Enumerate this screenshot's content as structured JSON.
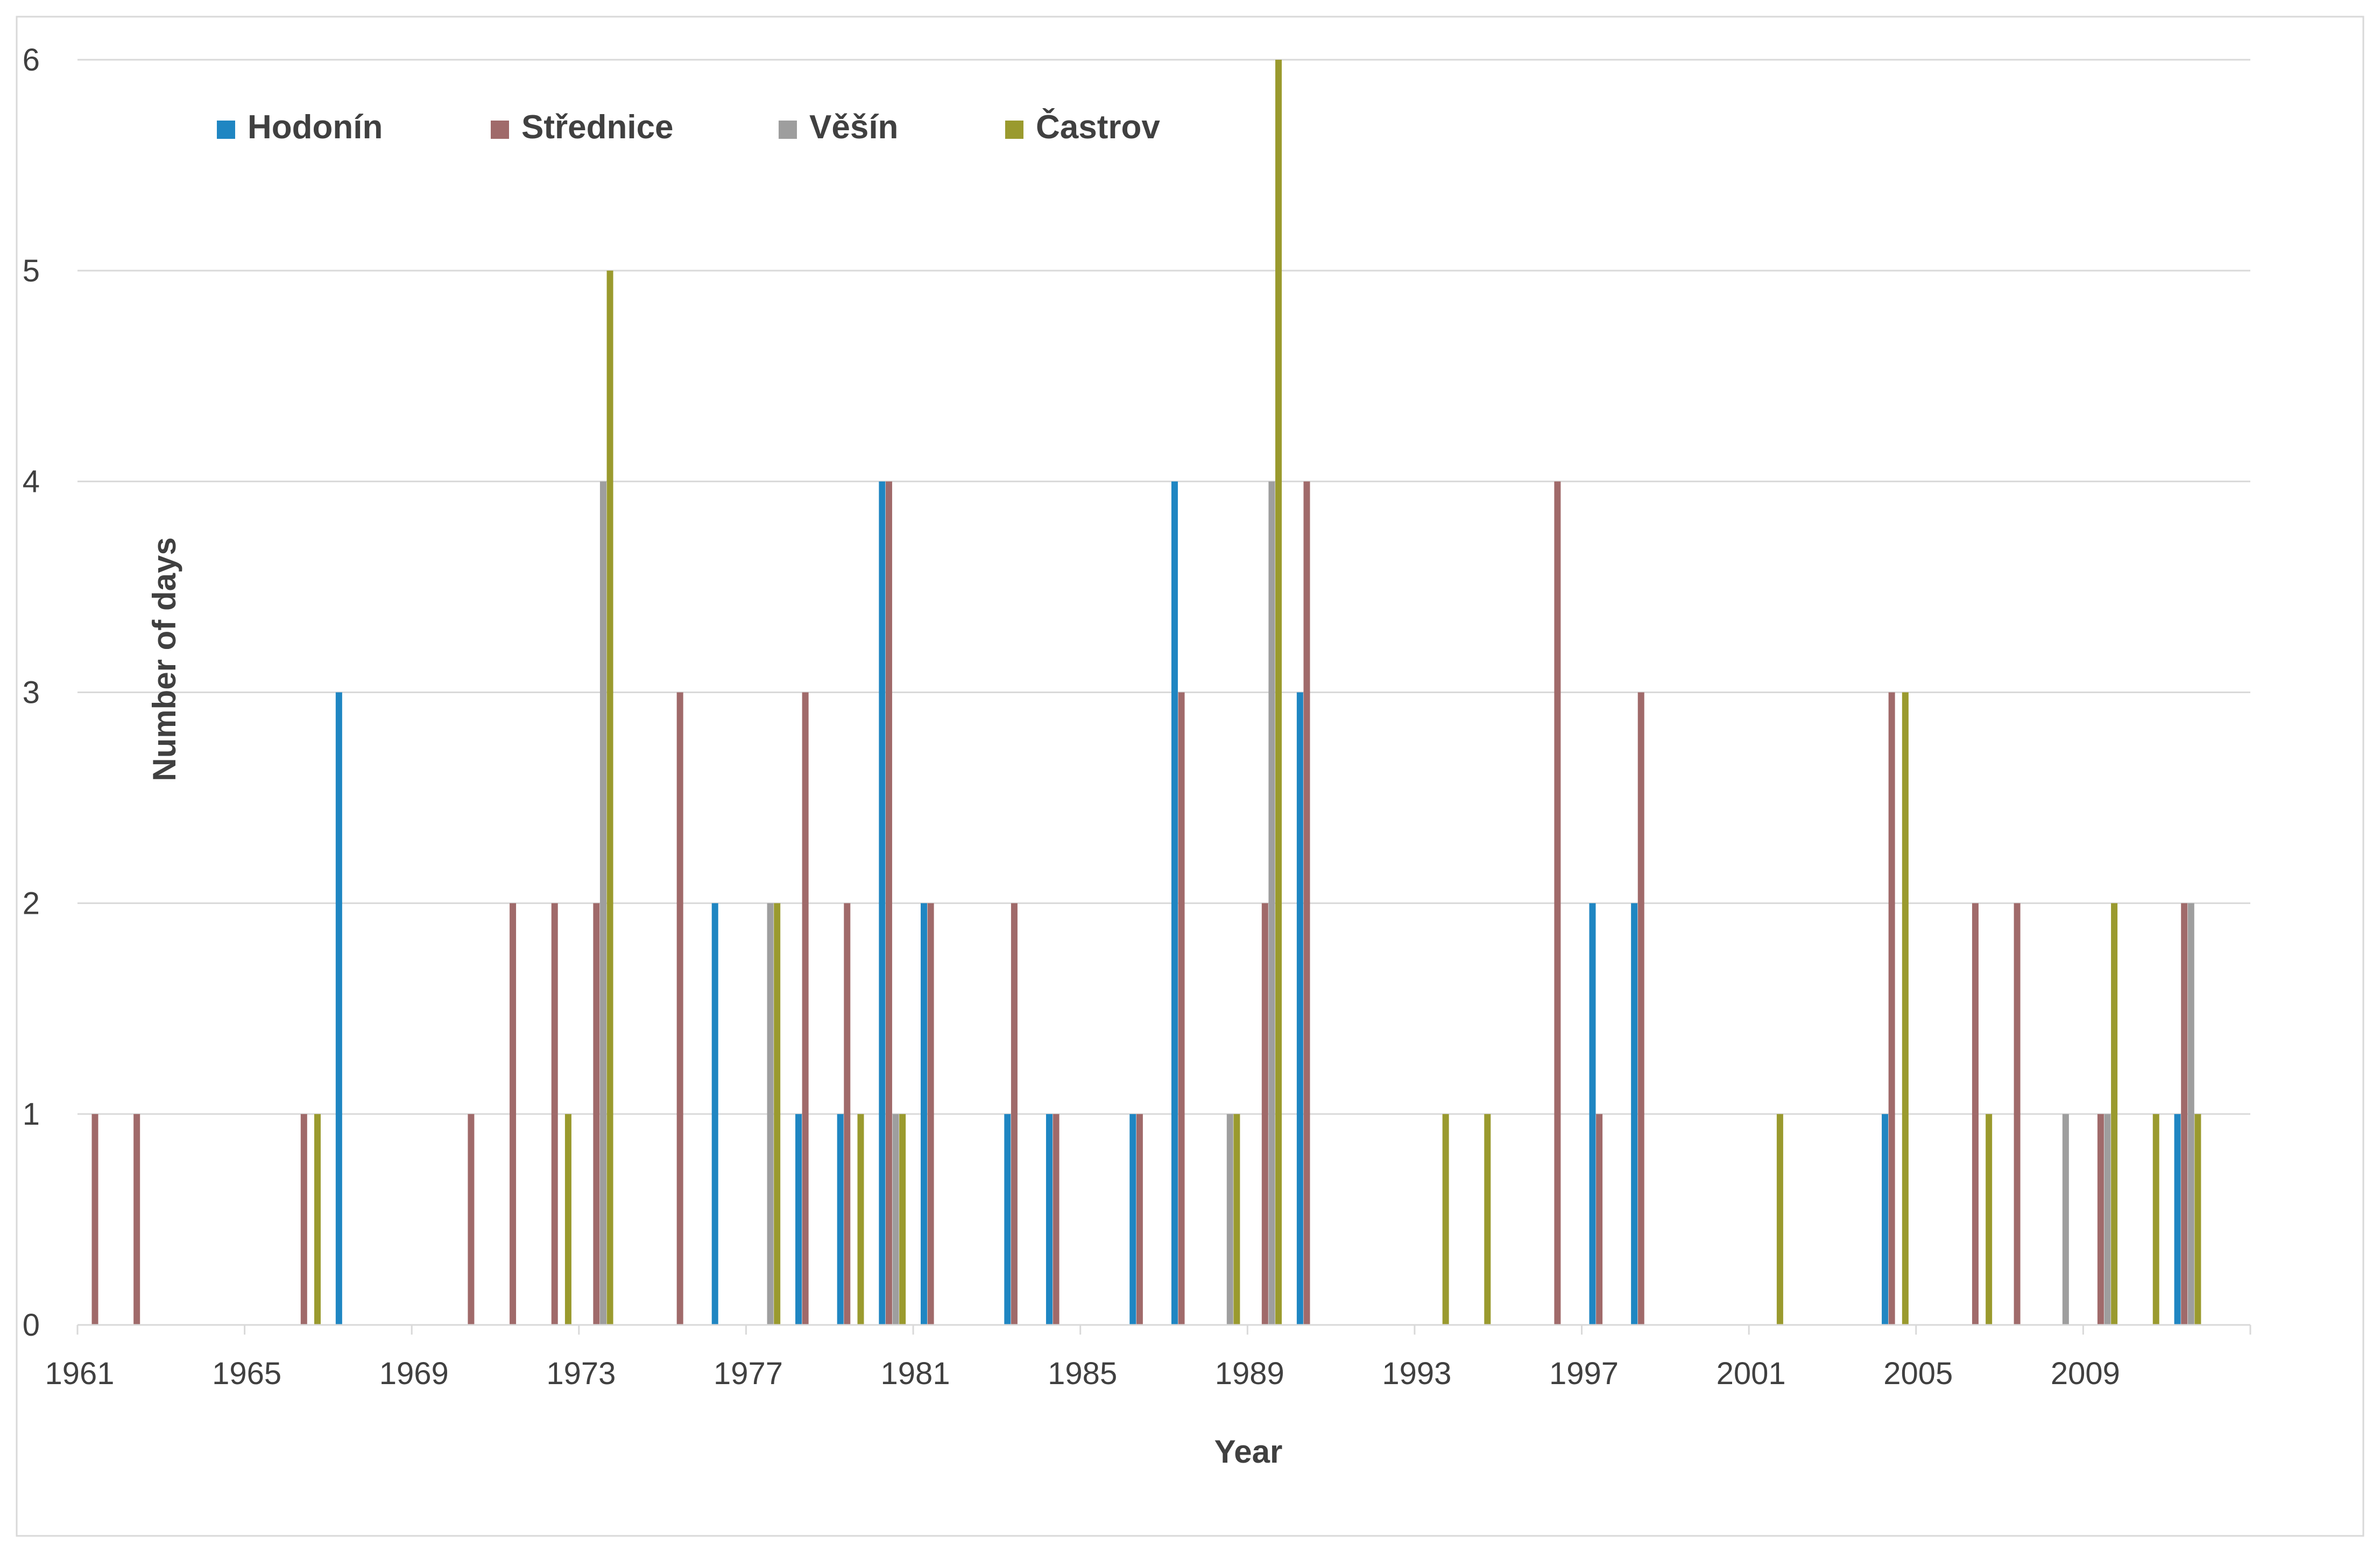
{
  "chart_data": {
    "type": "bar",
    "xlabel": "Year",
    "ylabel": "Number of days",
    "ylim": [
      0,
      6
    ],
    "yticks": [
      0,
      1,
      2,
      3,
      4,
      5,
      6
    ],
    "grid": "horizontal",
    "legend_position": "top-left",
    "categories": [
      1961,
      1962,
      1963,
      1964,
      1965,
      1966,
      1967,
      1968,
      1969,
      1970,
      1971,
      1972,
      1973,
      1974,
      1975,
      1976,
      1977,
      1978,
      1979,
      1980,
      1981,
      1982,
      1983,
      1984,
      1985,
      1986,
      1987,
      1988,
      1989,
      1990,
      1991,
      1992,
      1993,
      1994,
      1995,
      1996,
      1997,
      1998,
      1999,
      2000,
      2001,
      2002,
      2003,
      2004,
      2005,
      2006,
      2007,
      2008,
      2009,
      2010,
      2011,
      2012
    ],
    "category_labels": [
      "1961",
      "1965",
      "1969",
      "1973",
      "1977",
      "1981",
      "1985",
      "1989",
      "1993",
      "1997",
      "2001",
      "2005",
      "2009"
    ],
    "series": [
      {
        "name": "Hodonín",
        "color": "#1f86c2",
        "values": [
          0,
          0,
          0,
          0,
          0,
          0,
          3,
          0,
          0,
          0,
          0,
          0,
          0,
          0,
          0,
          2,
          0,
          1,
          1,
          4,
          2,
          0,
          1,
          1,
          0,
          1,
          4,
          0,
          0,
          3,
          0,
          0,
          0,
          0,
          0,
          0,
          2,
          2,
          0,
          0,
          0,
          0,
          0,
          1,
          0,
          0,
          0,
          0,
          0,
          0,
          1,
          0
        ]
      },
      {
        "name": "Střednice",
        "color": "#a06a6a",
        "values": [
          1,
          1,
          0,
          0,
          0,
          1,
          0,
          0,
          0,
          1,
          2,
          2,
          2,
          0,
          3,
          0,
          0,
          3,
          2,
          4,
          2,
          0,
          2,
          1,
          0,
          1,
          3,
          0,
          2,
          4,
          0,
          0,
          0,
          0,
          0,
          4,
          1,
          3,
          0,
          0,
          0,
          0,
          0,
          3,
          0,
          2,
          2,
          0,
          1,
          0,
          2,
          0
        ]
      },
      {
        "name": "Věšín",
        "color": "#9e9e9e",
        "values": [
          0,
          0,
          0,
          0,
          0,
          0,
          0,
          0,
          0,
          0,
          0,
          0,
          4,
          0,
          0,
          0,
          2,
          0,
          0,
          1,
          0,
          0,
          0,
          0,
          0,
          0,
          0,
          1,
          4,
          0,
          0,
          0,
          0,
          0,
          0,
          0,
          0,
          0,
          0,
          0,
          0,
          0,
          0,
          0,
          0,
          0,
          0,
          1,
          1,
          0,
          2,
          0
        ]
      },
      {
        "name": "Častrov",
        "color": "#9a9a2e",
        "values": [
          0,
          0,
          0,
          0,
          0,
          1,
          0,
          0,
          0,
          0,
          0,
          1,
          5,
          0,
          0,
          0,
          2,
          0,
          1,
          1,
          0,
          0,
          0,
          0,
          0,
          0,
          0,
          1,
          6,
          0,
          0,
          0,
          1,
          1,
          0,
          0,
          0,
          0,
          0,
          0,
          1,
          0,
          0,
          3,
          0,
          1,
          0,
          0,
          2,
          1,
          1,
          0
        ]
      }
    ]
  }
}
